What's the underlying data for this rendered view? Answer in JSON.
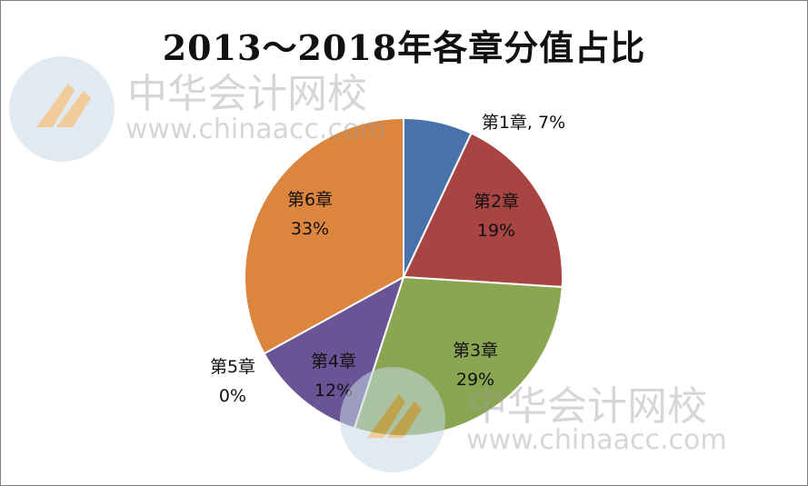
{
  "chart_data": {
    "type": "pie",
    "title": "2013～2018年各章分值占比",
    "slices": [
      {
        "label": "第1章",
        "percent_label": "7%",
        "value": 7,
        "color": "#4a72aa"
      },
      {
        "label": "第2章",
        "percent_label": "19%",
        "value": 19,
        "color": "#a84543"
      },
      {
        "label": "第3章",
        "percent_label": "29%",
        "value": 29,
        "color": "#8aa653"
      },
      {
        "label": "第4章",
        "percent_label": "12%",
        "value": 12,
        "color": "#6b5496"
      },
      {
        "label": "第5章",
        "percent_label": "0%",
        "value": 0,
        "color": "#3f98b0"
      },
      {
        "label": "第6章",
        "percent_label": "33%",
        "value": 33,
        "color": "#dc853e"
      }
    ],
    "legend": "none"
  },
  "watermark": {
    "brand": "中华会计网校",
    "url": "www.chinaacc.com"
  }
}
